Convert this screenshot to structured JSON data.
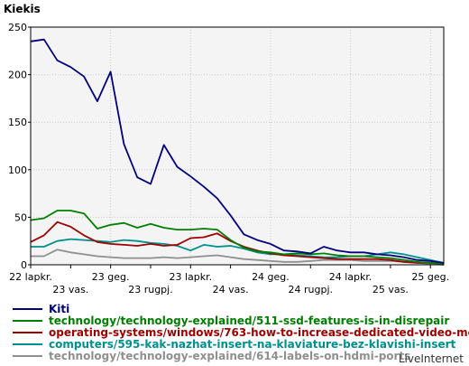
{
  "chart_data": {
    "type": "line",
    "ylabel": "Kiekis",
    "ylim": [
      0,
      250
    ],
    "yticks": [
      0,
      50,
      100,
      150,
      200,
      250
    ],
    "grid": true,
    "x_tick_labels_top": [
      "22 lapkr.",
      "23 geg.",
      "23 lapkr.",
      "24 geg.",
      "24 lapkr.",
      "25 geg."
    ],
    "x_tick_labels_bottom": [
      "23 vas.",
      "23 rugpj.",
      "24 vas.",
      "24 rugpj.",
      "25 vas."
    ],
    "x": [
      "2022-11",
      "2022-12",
      "2023-01",
      "2023-02",
      "2023-03",
      "2023-04",
      "2023-05",
      "2023-06",
      "2023-07",
      "2023-08",
      "2023-09",
      "2023-10",
      "2023-11",
      "2023-12",
      "2024-01",
      "2024-02",
      "2024-03",
      "2024-04",
      "2024-05",
      "2024-06",
      "2024-07",
      "2024-08",
      "2024-09",
      "2024-10",
      "2024-11",
      "2024-12",
      "2025-01",
      "2025-02",
      "2025-03",
      "2025-04",
      "2025-05",
      "2025-06"
    ],
    "series": [
      {
        "name": "Kiti",
        "color": "#00007f",
        "values": [
          235,
          237,
          215,
          208,
          198,
          172,
          203,
          127,
          92,
          85,
          126,
          103,
          93,
          82,
          70,
          52,
          32,
          26,
          22,
          15,
          14,
          12,
          19,
          15,
          13,
          13,
          11,
          10,
          8,
          5,
          4,
          2
        ]
      },
      {
        "name": "technology/technology-explained/511-ssd-features-is-in-disrepair",
        "color": "#007f00",
        "values": [
          47,
          49,
          57,
          57,
          54,
          38,
          42,
          44,
          39,
          43,
          39,
          37,
          37,
          38,
          37,
          26,
          18,
          14,
          13,
          11,
          12,
          11,
          12,
          10,
          9,
          9,
          8,
          7,
          5,
          3,
          2,
          1
        ]
      },
      {
        "name": "operating-systems/windows/763-how-to-increase-dedicated-video-memo",
        "color": "#9f0000",
        "values": [
          24,
          31,
          45,
          40,
          31,
          24,
          22,
          21,
          20,
          22,
          20,
          21,
          28,
          29,
          33,
          25,
          19,
          15,
          12,
          10,
          9,
          8,
          7,
          6,
          6,
          6,
          6,
          5,
          3,
          2,
          2,
          1
        ]
      },
      {
        "name": "computers/595-kak-nazhat-insert-na-klaviature-bez-klavishi-insert",
        "color": "#008f8f",
        "values": [
          19,
          19,
          25,
          27,
          26,
          25,
          24,
          26,
          25,
          23,
          22,
          20,
          15,
          21,
          19,
          20,
          17,
          13,
          11,
          11,
          10,
          9,
          8,
          8,
          9,
          9,
          11,
          13,
          11,
          8,
          5,
          2
        ]
      },
      {
        "name": "technology/technology-explained/614-labels-on-hdmi-ports",
        "color": "#8f8f8f",
        "values": [
          9,
          9,
          16,
          13,
          11,
          9,
          8,
          7,
          7,
          7,
          8,
          7,
          8,
          9,
          10,
          8,
          6,
          5,
          4,
          3,
          3,
          4,
          5,
          5,
          5,
          4,
          4,
          4,
          3,
          2,
          1,
          0
        ]
      }
    ]
  },
  "brand": "LiveInternet"
}
